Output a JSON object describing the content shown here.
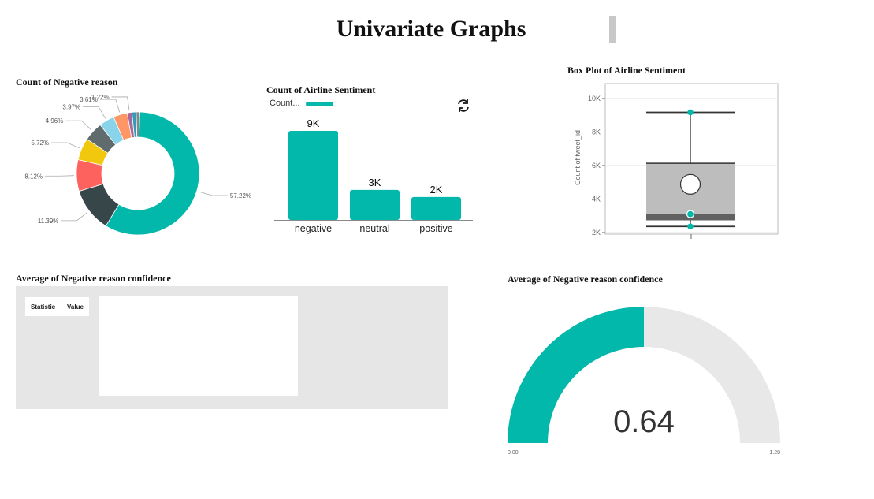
{
  "header": {
    "title": "Univariate Graphs"
  },
  "panels": {
    "donut_title": "Count of  Negative reason",
    "bar_title": "Count of Airline Sentiment",
    "box_title": "Box Plot of  Airline Sentiment",
    "table_title": "Average of Negative reason confidence",
    "gauge_title": "Average of Negative reason confidence"
  },
  "table": {
    "col_statistic": "Statistic",
    "col_value": "Value"
  },
  "bar_legend": {
    "label": "Count..."
  },
  "icons": {
    "refresh": "refresh-icon"
  },
  "colors": {
    "teal": "#01B8AA",
    "dark": "#374649",
    "red": "#FD625E",
    "yellow": "#F2C80F",
    "gray": "#5F6B6D",
    "lightblue": "#8AD4EB",
    "orange": "#FE9666",
    "purple": "#A66999",
    "blue": "#3599B8",
    "track": "#e8e8e8"
  },
  "chart_data": [
    {
      "type": "pie",
      "title": "Count of  Negative reason",
      "values": [
        57.22,
        11.39,
        8.12,
        5.72,
        4.96,
        3.97,
        3.61,
        1.22
      ],
      "labels": [
        "57.22%",
        "11.39%",
        "8.12%",
        "5.72%",
        "4.96%",
        "3.97%",
        "3.61%",
        "1.22%"
      ],
      "colors": [
        "#01B8AA",
        "#374649",
        "#FD625E",
        "#F2C80F",
        "#5F6B6D",
        "#8AD4EB",
        "#FE9666",
        "#A66999"
      ],
      "extra_values": [
        1.1,
        0.9
      ],
      "extra_colors": [
        "#3599B8",
        "#7F898A"
      ]
    },
    {
      "type": "bar",
      "title": "Count of Airline Sentiment",
      "categories": [
        "negative",
        "neutral",
        "positive"
      ],
      "values": [
        9178,
        3099,
        2363
      ],
      "data_labels": [
        "9K",
        "3K",
        "2K"
      ],
      "legend": "Count...",
      "ylim": [
        0,
        9500
      ]
    },
    {
      "type": "box",
      "title": "Box Plot of  Airline Sentiment",
      "ylabel": "Count of tweet_id",
      "yticks": [
        "2K",
        "4K",
        "6K",
        "8K",
        "10K"
      ],
      "ytick_values": [
        2000,
        4000,
        6000,
        8000,
        10000
      ],
      "ylim": [
        1900,
        10300
      ],
      "whisker_low": 2363,
      "q1": 2730,
      "median": 3099,
      "q3": 6138,
      "whisker_high": 9178,
      "mean": 4880,
      "points": [
        2363,
        3099,
        9178
      ]
    },
    {
      "type": "gauge",
      "title": "Average of Negative reason confidence",
      "value": 0.64,
      "value_label": "0.64",
      "min": 0,
      "max": 1.28,
      "min_label": "0.00",
      "max_label": "1.28"
    }
  ]
}
